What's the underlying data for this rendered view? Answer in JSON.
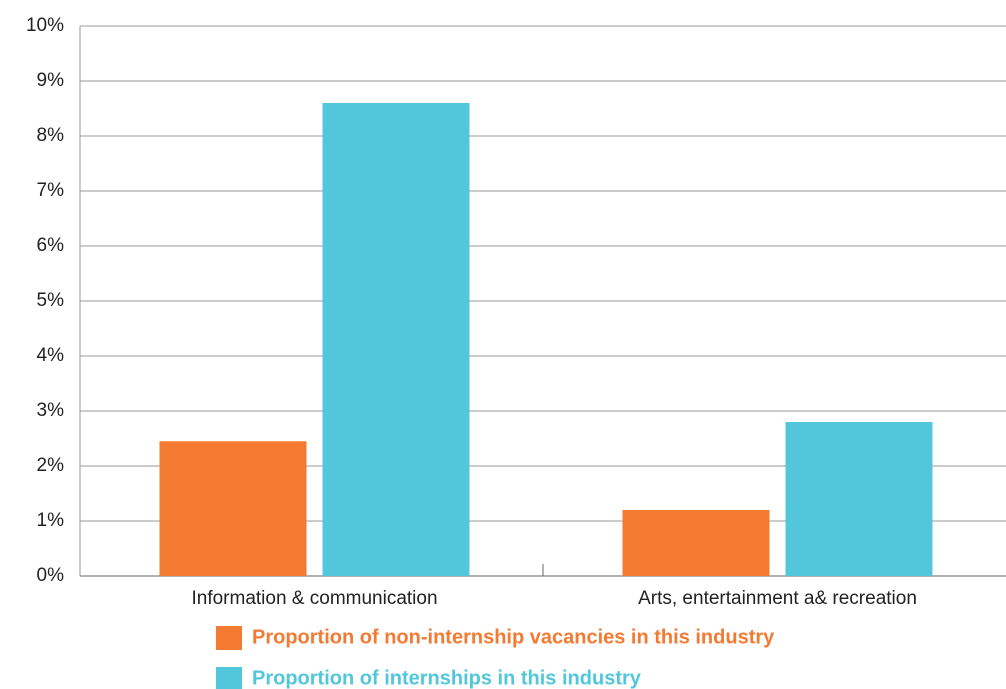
{
  "chart_data": {
    "type": "bar",
    "categories": [
      "Information & communication",
      "Arts, entertainment a& recreation"
    ],
    "series": [
      {
        "name": "Proportion of non-internship vacancies in this industry",
        "color": "#f47a32",
        "values": [
          2.45,
          1.2
        ]
      },
      {
        "name": "Proportion of internships in this industry",
        "color": "#52c7dc",
        "values": [
          8.6,
          2.8
        ]
      }
    ],
    "ylim": [
      0,
      10
    ],
    "yticks": [
      {
        "value": 0,
        "label": "0%"
      },
      {
        "value": 1,
        "label": "1%"
      },
      {
        "value": 2,
        "label": "2%"
      },
      {
        "value": 3,
        "label": "3%"
      },
      {
        "value": 4,
        "label": "4%"
      },
      {
        "value": 5,
        "label": "5%"
      },
      {
        "value": 6,
        "label": "6%"
      },
      {
        "value": 7,
        "label": "7%"
      },
      {
        "value": 8,
        "label": "8%"
      },
      {
        "value": 9,
        "label": "9%"
      },
      {
        "value": 10,
        "label": "10%"
      }
    ],
    "grid": true,
    "legend": "bottom"
  }
}
